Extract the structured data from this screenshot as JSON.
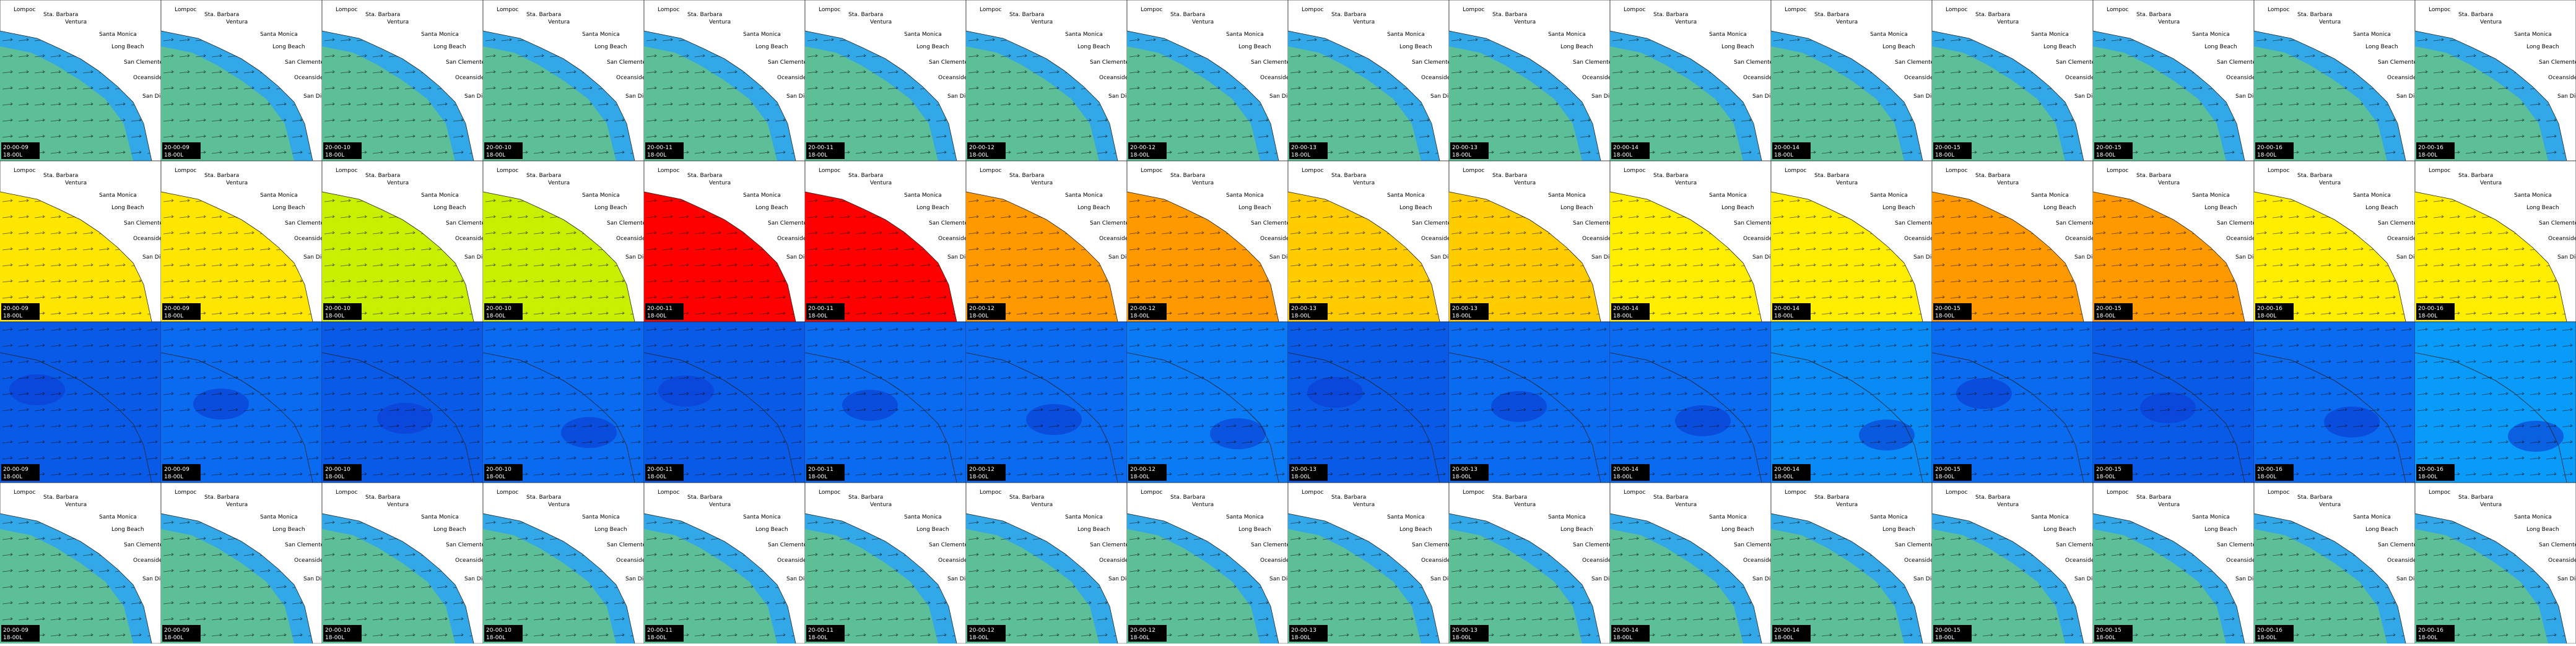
{
  "place_names": [
    "Lompoc",
    "Sta. Barbara",
    "Ventura",
    "Santa Monica",
    "Long Beach",
    "San Clemente",
    "Oceanside",
    "San Diego"
  ],
  "rows": [
    {
      "tiles": [
        {
          "time": "20-00-09",
          "sub": "18-00L",
          "color": "#5cbf98"
        },
        {
          "time": "20-00-09",
          "sub": "18-00L",
          "color": "#5cbf98"
        },
        {
          "time": "20-00-10",
          "sub": "18-00L",
          "color": "#5cbf98"
        },
        {
          "time": "20-00-10",
          "sub": "18-00L",
          "color": "#5cbf98"
        },
        {
          "time": "20-00-11",
          "sub": "18-00L",
          "color": "#5cbf98"
        },
        {
          "time": "20-00-11",
          "sub": "18-00L",
          "color": "#5cbf98"
        },
        {
          "time": "20-00-12",
          "sub": "18-00L",
          "color": "#5cbf98"
        },
        {
          "time": "20-00-12",
          "sub": "18-00L",
          "color": "#5cbf98"
        },
        {
          "time": "20-00-13",
          "sub": "18-00L",
          "color": "#5cbf98"
        },
        {
          "time": "20-00-13",
          "sub": "18-00L",
          "color": "#5cbf98"
        },
        {
          "time": "20-00-14",
          "sub": "18-00L",
          "color": "#5cbf98"
        },
        {
          "time": "20-00-14",
          "sub": "18-00L",
          "color": "#5cbf98"
        },
        {
          "time": "20-00-15",
          "sub": "18-00L",
          "color": "#5cbf98"
        },
        {
          "time": "20-00-15",
          "sub": "18-00L",
          "color": "#5cbf98"
        },
        {
          "time": "20-00-16",
          "sub": "18-00L",
          "color": "#5cbf98"
        },
        {
          "time": "20-00-16",
          "sub": "18-00L",
          "color": "#5cbf98"
        }
      ]
    },
    {
      "tiles": [
        {
          "time": "20-00-09",
          "sub": "18-00L",
          "color": "#ffe600"
        },
        {
          "time": "20-00-09",
          "sub": "18-00L",
          "color": "#ffe600"
        },
        {
          "time": "20-00-10",
          "sub": "18-00L",
          "color": "#c8ee00"
        },
        {
          "time": "20-00-10",
          "sub": "18-00L",
          "color": "#c8ee00"
        },
        {
          "time": "20-00-11",
          "sub": "18-00L",
          "color": "#ff0000"
        },
        {
          "time": "20-00-11",
          "sub": "18-00L",
          "color": "#ff0000"
        },
        {
          "time": "20-00-12",
          "sub": "18-00L",
          "color": "#ff9900"
        },
        {
          "time": "20-00-12",
          "sub": "18-00L",
          "color": "#ff9900"
        },
        {
          "time": "20-00-13",
          "sub": "18-00L",
          "color": "#ffcc00"
        },
        {
          "time": "20-00-13",
          "sub": "18-00L",
          "color": "#ffcc00"
        },
        {
          "time": "20-00-14",
          "sub": "18-00L",
          "color": "#ffee00"
        },
        {
          "time": "20-00-14",
          "sub": "18-00L",
          "color": "#ffee00"
        },
        {
          "time": "20-00-15",
          "sub": "18-00L",
          "color": "#ff9900"
        },
        {
          "time": "20-00-15",
          "sub": "18-00L",
          "color": "#ff9900"
        },
        {
          "time": "20-00-16",
          "sub": "18-00L",
          "color": "#ffee00"
        },
        {
          "time": "20-00-16",
          "sub": "18-00L",
          "color": "#ffee00"
        }
      ]
    },
    {
      "tiles": [
        {
          "time": "20-00-09",
          "sub": "18-00L",
          "color": "#0a5ae8"
        },
        {
          "time": "20-00-09",
          "sub": "18-00L",
          "color": "#0a6af0"
        },
        {
          "time": "20-00-10",
          "sub": "18-00L",
          "color": "#0a5ae8"
        },
        {
          "time": "20-00-10",
          "sub": "18-00L",
          "color": "#0a6af0"
        },
        {
          "time": "20-00-11",
          "sub": "18-00L",
          "color": "#0a5ae8"
        },
        {
          "time": "20-00-11",
          "sub": "18-00L",
          "color": "#0a6af0"
        },
        {
          "time": "20-00-12",
          "sub": "18-00L",
          "color": "#0a6af0"
        },
        {
          "time": "20-00-12",
          "sub": "18-00L",
          "color": "#0a7af5"
        },
        {
          "time": "20-00-13",
          "sub": "18-00L",
          "color": "#0a5ae8"
        },
        {
          "time": "20-00-13",
          "sub": "18-00L",
          "color": "#0a6af0"
        },
        {
          "time": "20-00-14",
          "sub": "18-00L",
          "color": "#0a6af0"
        },
        {
          "time": "20-00-14",
          "sub": "18-00L",
          "color": "#0a8af5"
        },
        {
          "time": "20-00-15",
          "sub": "18-00L",
          "color": "#0a6af0"
        },
        {
          "time": "20-00-15",
          "sub": "18-00L",
          "color": "#0a5ae8"
        },
        {
          "time": "20-00-16",
          "sub": "18-00L",
          "color": "#0a6af0"
        },
        {
          "time": "20-00-16",
          "sub": "18-00L",
          "color": "#0a9af8"
        }
      ]
    },
    {
      "tiles": [
        {
          "time": "20-00-09",
          "sub": "18-00L",
          "color": "#5cbf98"
        },
        {
          "time": "20-00-09",
          "sub": "18-00L",
          "color": "#5cbf98"
        },
        {
          "time": "20-00-10",
          "sub": "18-00L",
          "color": "#5cbf98"
        },
        {
          "time": "20-00-10",
          "sub": "18-00L",
          "color": "#5cbf98"
        },
        {
          "time": "20-00-11",
          "sub": "18-00L",
          "color": "#5cbf98"
        },
        {
          "time": "20-00-11",
          "sub": "18-00L",
          "color": "#5cbf98"
        },
        {
          "time": "20-00-12",
          "sub": "18-00L",
          "color": "#5cbf98"
        },
        {
          "time": "20-00-12",
          "sub": "18-00L",
          "color": "#5cbf98"
        },
        {
          "time": "20-00-13",
          "sub": "18-00L",
          "color": "#5cbf98"
        },
        {
          "time": "20-00-13",
          "sub": "18-00L",
          "color": "#5cbf98"
        },
        {
          "time": "20-00-14",
          "sub": "18-00L",
          "color": "#5cbf98"
        },
        {
          "time": "20-00-14",
          "sub": "18-00L",
          "color": "#5cbf98"
        },
        {
          "time": "20-00-15",
          "sub": "18-00L",
          "color": "#5cbf98"
        },
        {
          "time": "20-00-15",
          "sub": "18-00L",
          "color": "#5cbf98"
        },
        {
          "time": "20-00-16",
          "sub": "18-00L",
          "color": "#5cbf98"
        },
        {
          "time": "20-00-16",
          "sub": "18-00L",
          "color": "#5cbf98"
        }
      ]
    }
  ]
}
